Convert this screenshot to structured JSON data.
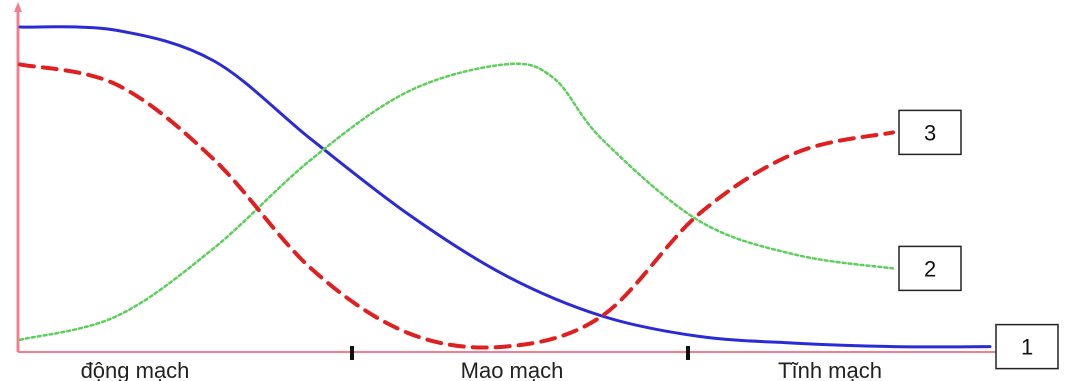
{
  "chart_data": {
    "type": "line",
    "title": "",
    "xlabel": "",
    "ylabel": "",
    "x_regions": [
      "động mạch",
      "Mao mạch",
      "Tĩnh mạch"
    ],
    "grid": false,
    "series": [
      {
        "name": "1",
        "color": "#2b2bd6",
        "style": "solid",
        "x": [
          0,
          10,
          20,
          30,
          40,
          50,
          60,
          70,
          80,
          90,
          100
        ],
        "values": [
          95,
          94,
          85,
          62,
          40,
          22,
          10,
          4,
          2,
          1,
          1
        ]
      },
      {
        "name": "2",
        "color": "#5ccf5c",
        "style": "dotted",
        "x": [
          0,
          10,
          20,
          30,
          40,
          50,
          55,
          60,
          70,
          80,
          90
        ],
        "values": [
          3,
          10,
          30,
          56,
          76,
          84,
          80,
          62,
          38,
          28,
          24
        ]
      },
      {
        "name": "3",
        "color": "#e02020",
        "style": "dashed",
        "x": [
          0,
          10,
          20,
          30,
          40,
          50,
          60,
          70,
          80,
          90
        ],
        "values": [
          84,
          78,
          56,
          24,
          5,
          1,
          10,
          40,
          58,
          64
        ]
      }
    ]
  }
}
